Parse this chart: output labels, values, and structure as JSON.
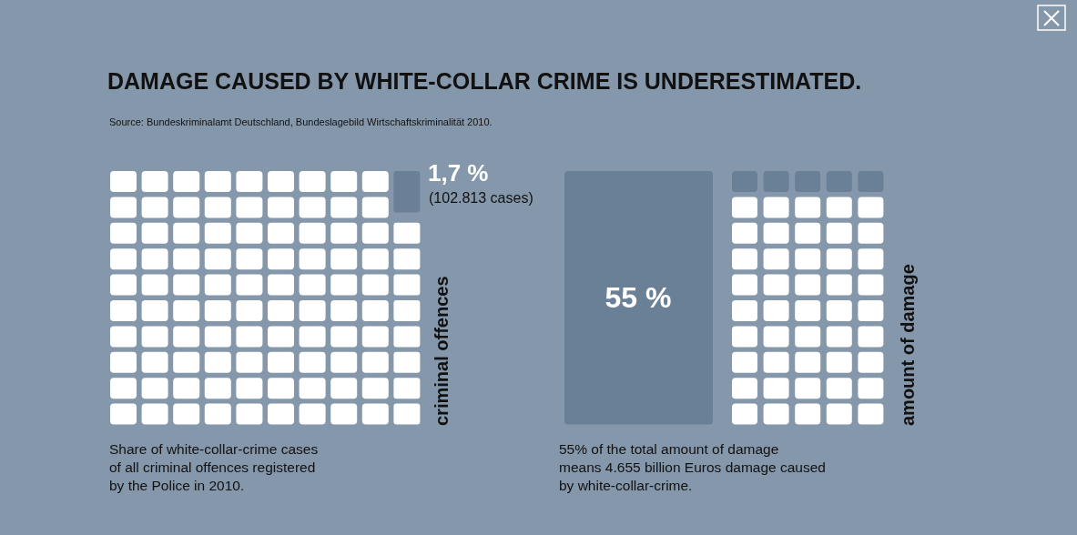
{
  "chart_data": [
    {
      "type": "other",
      "title": "DAMAGE CAUSED BY WHITE-COLLAR CRIME IS UNDERESTIMATED.",
      "values": [
        1.7
      ],
      "value_labels": [
        "1,7 %"
      ],
      "colors": [
        "#6a8096"
      ],
      "ylabel": "criminal offences",
      "annotations": [
        "Source: Bundeskriminalamt Deutschland, Bundeslagebild Wirtschaftskriminalität 2010.",
        "(102.813 cases)",
        "Share of white-collar-crime cases\nof all criminal offences registered\nby the Police in 2010."
      ]
    },
    {
      "type": "other",
      "values": [
        55
      ],
      "value_labels": [
        "55 %"
      ],
      "colors": [
        "#6a8096"
      ],
      "ylabel": "amount of damage",
      "annotations": [
        "55% of the total amount of damage\nmeans 4.655 billion Euros damage caused\nby white-collar-crime."
      ]
    }
  ]
}
